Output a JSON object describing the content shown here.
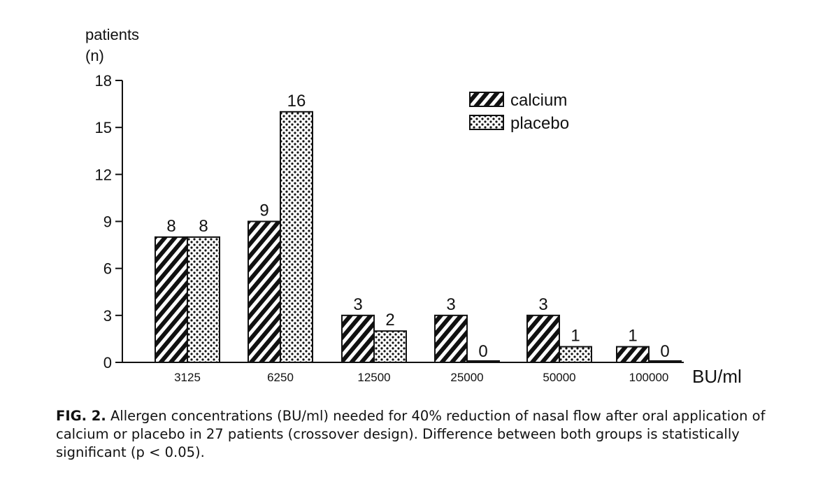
{
  "chart_data": {
    "type": "bar",
    "ylabel_line1": "patients",
    "ylabel_line2": "(n)",
    "xlabel": "BU/ml",
    "categories": [
      "3125",
      "6250",
      "12500",
      "25000",
      "50000",
      "100000"
    ],
    "series": [
      {
        "name": "calcium",
        "values": [
          8,
          9,
          3,
          3,
          3,
          1
        ],
        "pattern": "hatch"
      },
      {
        "name": "placebo",
        "values": [
          8,
          16,
          2,
          0,
          1,
          0
        ],
        "pattern": "dots"
      }
    ],
    "yticks": [
      0,
      3,
      6,
      9,
      12,
      15,
      18
    ],
    "ylim": [
      0,
      18
    ],
    "legend_position": "top-right",
    "grid": false
  },
  "caption": {
    "label": "FIG. 2.",
    "text": "Allergen concentrations (BU/ml) needed for 40% reduction of nasal flow after oral application of calcium or placebo in 27 patients (crossover design). Difference between both groups is statistically significant (p < 0.05)."
  },
  "colors": {
    "ink": "#111111",
    "paper": "#ffffff"
  }
}
